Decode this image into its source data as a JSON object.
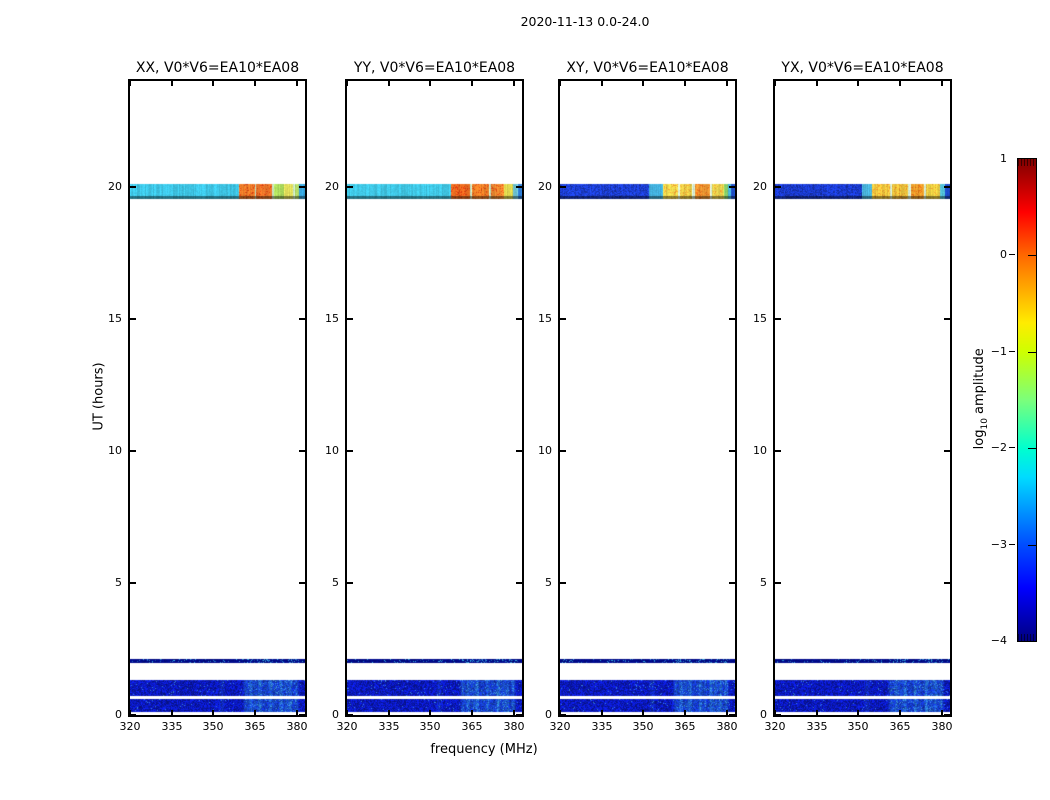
{
  "chart_data": {
    "type": "heatmap",
    "title": "2020-11-13 0.0-24.0",
    "xlabel": "frequency (MHz)",
    "ylabel": "UT (hours)",
    "x_range_mhz": [
      320,
      383
    ],
    "y_range_hours": [
      0,
      24
    ],
    "x_tick_values": [
      320,
      335,
      350,
      365,
      380
    ],
    "x_tick_labels": [
      "320",
      "335",
      "350",
      "365",
      "380"
    ],
    "y_tick_values": [
      0,
      5,
      10,
      15,
      20
    ],
    "y_tick_labels": [
      "0",
      "5",
      "10",
      "15",
      "20"
    ],
    "grid": false,
    "colorbar": {
      "label_prefix": "log",
      "label_sub": "10",
      "label_suffix": " amplitude",
      "tick_values": [
        1,
        0,
        -1,
        -2,
        -3,
        -4
      ],
      "tick_labels": [
        "1",
        "0",
        "−1",
        "−2",
        "−3",
        "−4"
      ],
      "value_range": [
        -4,
        1
      ],
      "colormap": "jet",
      "stops": [
        {
          "p": 0.0,
          "c": "#800000"
        },
        {
          "p": 0.11,
          "c": "#ff0000"
        },
        {
          "p": 0.2,
          "c": "#ff6800"
        },
        {
          "p": 0.3,
          "c": "#ffc700"
        },
        {
          "p": 0.34,
          "c": "#ffec00"
        },
        {
          "p": 0.4,
          "c": "#ceff00"
        },
        {
          "p": 0.5,
          "c": "#7bff7b"
        },
        {
          "p": 0.6,
          "c": "#00ffce"
        },
        {
          "p": 0.66,
          "c": "#00dbff"
        },
        {
          "p": 0.8,
          "c": "#004dff"
        },
        {
          "p": 0.89,
          "c": "#0000ff"
        },
        {
          "p": 1.0,
          "c": "#000080"
        }
      ]
    },
    "features": {
      "scan_band_ut": [
        19.55,
        20.1
      ],
      "rfi_line_ut": [
        1.97,
        2.12
      ],
      "rfi_base_color": "#000a84",
      "low_block_ut": [
        [
          0.12,
          0.61
        ],
        [
          0.72,
          1.32
        ]
      ],
      "low_base_color": "#0a18b6",
      "streak_highlight_color": "#3cbfeb",
      "rfi_streaks_mhz": [
        {
          "f": 353.2,
          "s": 0.22
        },
        {
          "f": 361.8,
          "s": 0.55
        },
        {
          "f": 363.6,
          "s": 0.75
        },
        {
          "f": 365.3,
          "s": 0.5
        },
        {
          "f": 366.9,
          "s": 0.85
        },
        {
          "f": 368.8,
          "s": 0.45
        },
        {
          "f": 370.6,
          "s": 0.8
        },
        {
          "f": 372.4,
          "s": 0.5
        },
        {
          "f": 374.4,
          "s": 0.9
        },
        {
          "f": 376.2,
          "s": 0.6
        },
        {
          "f": 377.8,
          "s": 0.75
        },
        {
          "f": 379.8,
          "s": 0.65
        }
      ]
    },
    "panels": [
      {
        "title": "XX, V0*V6=EA10*EA08",
        "pol": "XX",
        "scan_segments": [
          {
            "f0": 320.0,
            "f1": 359.4,
            "c": "#3ec6e6"
          },
          {
            "f0": 359.4,
            "f1": 364.9,
            "c": "#f3802a",
            "spots": "#e04414"
          },
          {
            "f0": 364.9,
            "f1": 365.5,
            "c": "#cdebc8"
          },
          {
            "f0": 365.5,
            "f1": 371.3,
            "c": "#f0782a",
            "spots": "#e04414"
          },
          {
            "f0": 371.3,
            "f1": 371.9,
            "c": "#cdebc8"
          },
          {
            "f0": 371.9,
            "f1": 375.3,
            "c": "#aede5e"
          },
          {
            "f0": 375.3,
            "f1": 378.7,
            "c": "#e4e05c"
          },
          {
            "f0": 378.7,
            "f1": 379.3,
            "c": "#cdebc8"
          },
          {
            "f0": 379.3,
            "f1": 381.0,
            "c": "#b8e06a"
          },
          {
            "f0": 381.0,
            "f1": 383.0,
            "c": "#38a8e0"
          }
        ]
      },
      {
        "title": "YY, V0*V6=EA10*EA08",
        "pol": "YY",
        "scan_segments": [
          {
            "f0": 320.0,
            "f1": 357.4,
            "c": "#40c8e6"
          },
          {
            "f0": 357.4,
            "f1": 364.3,
            "c": "#ef6f20",
            "spots": "#dd3a10"
          },
          {
            "f0": 364.3,
            "f1": 365.1,
            "c": "#cdebc8"
          },
          {
            "f0": 365.1,
            "f1": 371.0,
            "c": "#f08428",
            "spots": "#e04414"
          },
          {
            "f0": 371.0,
            "f1": 371.8,
            "c": "#cdebc8"
          },
          {
            "f0": 371.8,
            "f1": 376.6,
            "c": "#f08c30",
            "spots": "#e65018"
          },
          {
            "f0": 376.6,
            "f1": 379.7,
            "c": "#e0d84e"
          },
          {
            "f0": 379.7,
            "f1": 381.6,
            "c": "#70c8d8"
          },
          {
            "f0": 381.6,
            "f1": 383.0,
            "c": "#2f7fd8"
          }
        ]
      },
      {
        "title": "XY, V0*V6=EA10*EA08",
        "pol": "XY",
        "scan_segments": [
          {
            "f0": 320.0,
            "f1": 351.9,
            "c": "#1c3ed2",
            "noisy": true
          },
          {
            "f0": 351.9,
            "f1": 357.1,
            "c": "#44b4e2"
          },
          {
            "f0": 357.1,
            "f1": 362.4,
            "c": "#eeda4e",
            "spots": "#f0a030"
          },
          {
            "f0": 362.4,
            "f1": 363.3,
            "c": "#d8f0d8"
          },
          {
            "f0": 363.3,
            "f1": 367.7,
            "c": "#ead04a",
            "spots": "#f0a030"
          },
          {
            "f0": 367.7,
            "f1": 368.6,
            "c": "#d8f0d8"
          },
          {
            "f0": 368.6,
            "f1": 373.9,
            "c": "#f09a32",
            "spots": "#e86a1c"
          },
          {
            "f0": 373.9,
            "f1": 374.8,
            "c": "#d8f0d8"
          },
          {
            "f0": 374.8,
            "f1": 379.1,
            "c": "#e8d44e",
            "spots": "#f0a030"
          },
          {
            "f0": 379.1,
            "f1": 380.4,
            "c": "#8cd46a"
          },
          {
            "f0": 380.4,
            "f1": 381.7,
            "c": "#48b8d8"
          },
          {
            "f0": 381.7,
            "f1": 383.0,
            "c": "#2050c8"
          }
        ]
      },
      {
        "title": "YX, V0*V6=EA10*EA08",
        "pol": "YX",
        "scan_segments": [
          {
            "f0": 320.0,
            "f1": 351.2,
            "c": "#1a3ace",
            "noisy": true
          },
          {
            "f0": 351.2,
            "f1": 355.0,
            "c": "#4ab6de"
          },
          {
            "f0": 355.0,
            "f1": 361.3,
            "c": "#f0ca40",
            "spots": "#f09828"
          },
          {
            "f0": 361.3,
            "f1": 362.2,
            "c": "#d8f0d8"
          },
          {
            "f0": 362.2,
            "f1": 368.0,
            "c": "#eec83e",
            "spots": "#f09828"
          },
          {
            "f0": 368.0,
            "f1": 368.9,
            "c": "#d8f0d8"
          },
          {
            "f0": 368.9,
            "f1": 373.6,
            "c": "#efa22c",
            "spots": "#e87018"
          },
          {
            "f0": 373.6,
            "f1": 374.5,
            "c": "#d8f0d8"
          },
          {
            "f0": 374.5,
            "f1": 379.4,
            "c": "#ecd042",
            "spots": "#f0a030"
          },
          {
            "f0": 379.4,
            "f1": 381.1,
            "c": "#52c0d8"
          },
          {
            "f0": 381.1,
            "f1": 383.0,
            "c": "#1c48c4"
          }
        ]
      }
    ]
  }
}
